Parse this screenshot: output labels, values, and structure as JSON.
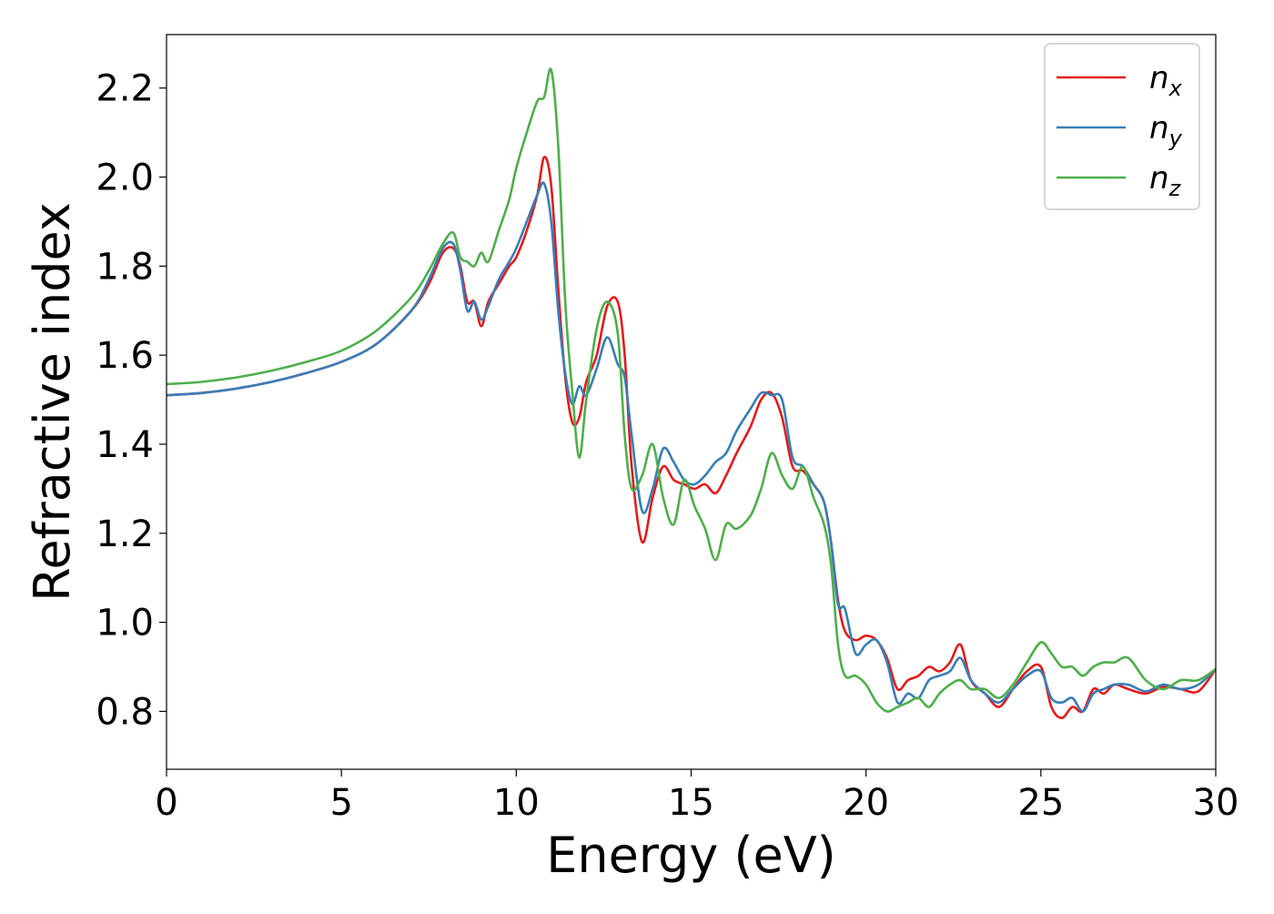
{
  "chart_data": {
    "type": "line",
    "title": "",
    "xlabel": "Energy (eV)",
    "ylabel": "Refractive index",
    "xlim": [
      0,
      30
    ],
    "ylim": [
      0.67,
      2.32
    ],
    "xticks": [
      0,
      5,
      10,
      15,
      20,
      25,
      30
    ],
    "xtick_labels": [
      "0",
      "5",
      "10",
      "15",
      "20",
      "25",
      "30"
    ],
    "yticks": [
      0.8,
      1.0,
      1.2,
      1.4,
      1.6,
      1.8,
      2.0,
      2.2
    ],
    "ytick_labels": [
      "0.8",
      "1.0",
      "1.2",
      "1.4",
      "1.6",
      "1.8",
      "2.0",
      "2.2"
    ],
    "grid": false,
    "legend_position": "top-right",
    "series": [
      {
        "name": "n",
        "subscript": "x",
        "color": "#e41a1c",
        "x": [
          0,
          1,
          2,
          3,
          4,
          5,
          6,
          7,
          7.5,
          7.9,
          8.2,
          8.4,
          8.6,
          8.8,
          9.0,
          9.2,
          9.5,
          9.8,
          10.0,
          10.3,
          10.6,
          10.8,
          11.0,
          11.2,
          11.4,
          11.6,
          11.8,
          12.0,
          12.3,
          12.6,
          12.9,
          13.1,
          13.3,
          13.6,
          13.9,
          14.2,
          14.5,
          14.8,
          15.1,
          15.4,
          15.7,
          16.0,
          16.3,
          16.7,
          17.0,
          17.3,
          17.6,
          17.9,
          18.2,
          18.5,
          18.8,
          19.0,
          19.2,
          19.4,
          19.7,
          20.0,
          20.3,
          20.6,
          20.9,
          21.2,
          21.5,
          21.8,
          22.1,
          22.4,
          22.7,
          23.0,
          23.4,
          23.8,
          24.2,
          24.6,
          25.0,
          25.3,
          25.6,
          25.9,
          26.2,
          26.5,
          26.8,
          27.1,
          27.5,
          28.0,
          28.5,
          29.0,
          29.5,
          30.0
        ],
        "y": [
          1.51,
          1.515,
          1.525,
          1.54,
          1.56,
          1.585,
          1.625,
          1.7,
          1.76,
          1.83,
          1.84,
          1.8,
          1.72,
          1.72,
          1.665,
          1.72,
          1.76,
          1.8,
          1.82,
          1.88,
          1.96,
          2.045,
          1.98,
          1.75,
          1.55,
          1.45,
          1.46,
          1.54,
          1.6,
          1.71,
          1.72,
          1.6,
          1.35,
          1.18,
          1.28,
          1.35,
          1.32,
          1.31,
          1.3,
          1.31,
          1.29,
          1.33,
          1.38,
          1.44,
          1.5,
          1.515,
          1.46,
          1.35,
          1.34,
          1.31,
          1.27,
          1.18,
          1.05,
          0.98,
          0.96,
          0.97,
          0.96,
          0.92,
          0.85,
          0.87,
          0.88,
          0.9,
          0.89,
          0.91,
          0.95,
          0.87,
          0.84,
          0.81,
          0.85,
          0.89,
          0.9,
          0.81,
          0.785,
          0.81,
          0.8,
          0.85,
          0.84,
          0.86,
          0.85,
          0.84,
          0.855,
          0.85,
          0.845,
          0.895
        ]
      },
      {
        "name": "n",
        "subscript": "y",
        "color": "#377eb8",
        "x": [
          0,
          1,
          2,
          3,
          4,
          5,
          6,
          7,
          7.5,
          7.9,
          8.2,
          8.4,
          8.6,
          8.8,
          9.0,
          9.2,
          9.5,
          9.8,
          10.0,
          10.3,
          10.6,
          10.8,
          11.0,
          11.2,
          11.4,
          11.6,
          11.8,
          12.0,
          12.3,
          12.6,
          12.9,
          13.1,
          13.3,
          13.6,
          13.9,
          14.2,
          14.5,
          14.8,
          15.1,
          15.4,
          15.7,
          16.0,
          16.3,
          16.7,
          17.0,
          17.3,
          17.6,
          17.9,
          18.2,
          18.5,
          18.8,
          19.0,
          19.2,
          19.4,
          19.7,
          20.0,
          20.3,
          20.6,
          20.9,
          21.2,
          21.5,
          21.8,
          22.1,
          22.4,
          22.7,
          23.0,
          23.4,
          23.8,
          24.2,
          24.6,
          25.0,
          25.3,
          25.6,
          25.9,
          26.2,
          26.5,
          26.8,
          27.1,
          27.5,
          28.0,
          28.5,
          29.0,
          29.5,
          30.0
        ],
        "y": [
          1.51,
          1.515,
          1.525,
          1.54,
          1.56,
          1.585,
          1.625,
          1.7,
          1.77,
          1.84,
          1.85,
          1.79,
          1.7,
          1.72,
          1.68,
          1.71,
          1.77,
          1.81,
          1.84,
          1.9,
          1.96,
          1.985,
          1.9,
          1.7,
          1.56,
          1.49,
          1.53,
          1.51,
          1.57,
          1.64,
          1.58,
          1.55,
          1.42,
          1.25,
          1.3,
          1.39,
          1.36,
          1.32,
          1.31,
          1.33,
          1.36,
          1.38,
          1.43,
          1.48,
          1.515,
          1.51,
          1.5,
          1.37,
          1.35,
          1.31,
          1.27,
          1.18,
          1.04,
          1.03,
          0.93,
          0.95,
          0.96,
          0.91,
          0.82,
          0.84,
          0.83,
          0.87,
          0.88,
          0.89,
          0.92,
          0.87,
          0.84,
          0.82,
          0.85,
          0.88,
          0.89,
          0.83,
          0.82,
          0.83,
          0.8,
          0.84,
          0.85,
          0.86,
          0.86,
          0.845,
          0.86,
          0.85,
          0.86,
          0.895
        ]
      },
      {
        "name": "n",
        "subscript": "z",
        "color": "#4daf4a",
        "x": [
          0,
          1,
          2,
          3,
          4,
          5,
          6,
          7,
          7.5,
          7.9,
          8.2,
          8.4,
          8.6,
          8.8,
          9.0,
          9.2,
          9.5,
          9.8,
          10.0,
          10.3,
          10.6,
          10.8,
          11.0,
          11.2,
          11.4,
          11.6,
          11.8,
          12.0,
          12.3,
          12.6,
          12.9,
          13.1,
          13.3,
          13.6,
          13.9,
          14.2,
          14.5,
          14.8,
          15.1,
          15.4,
          15.7,
          16.0,
          16.3,
          16.7,
          17.0,
          17.3,
          17.6,
          17.9,
          18.2,
          18.5,
          18.8,
          19.0,
          19.2,
          19.4,
          19.7,
          20.0,
          20.3,
          20.6,
          20.9,
          21.2,
          21.5,
          21.8,
          22.1,
          22.4,
          22.7,
          23.0,
          23.4,
          23.8,
          24.2,
          24.6,
          25.0,
          25.3,
          25.6,
          25.9,
          26.2,
          26.5,
          26.8,
          27.1,
          27.5,
          28.0,
          28.5,
          29.0,
          29.5,
          30.0
        ],
        "y": [
          1.535,
          1.54,
          1.55,
          1.565,
          1.585,
          1.61,
          1.655,
          1.73,
          1.79,
          1.85,
          1.875,
          1.82,
          1.81,
          1.8,
          1.83,
          1.81,
          1.88,
          1.95,
          2.02,
          2.1,
          2.17,
          2.18,
          2.24,
          2.07,
          1.72,
          1.52,
          1.37,
          1.5,
          1.66,
          1.72,
          1.65,
          1.42,
          1.3,
          1.33,
          1.4,
          1.28,
          1.22,
          1.32,
          1.26,
          1.21,
          1.14,
          1.22,
          1.21,
          1.24,
          1.3,
          1.38,
          1.33,
          1.3,
          1.35,
          1.28,
          1.22,
          1.13,
          0.95,
          0.88,
          0.88,
          0.86,
          0.82,
          0.8,
          0.81,
          0.82,
          0.83,
          0.81,
          0.84,
          0.86,
          0.87,
          0.85,
          0.85,
          0.83,
          0.86,
          0.91,
          0.955,
          0.93,
          0.9,
          0.9,
          0.88,
          0.9,
          0.91,
          0.91,
          0.92,
          0.87,
          0.85,
          0.87,
          0.87,
          0.895
        ]
      }
    ]
  }
}
